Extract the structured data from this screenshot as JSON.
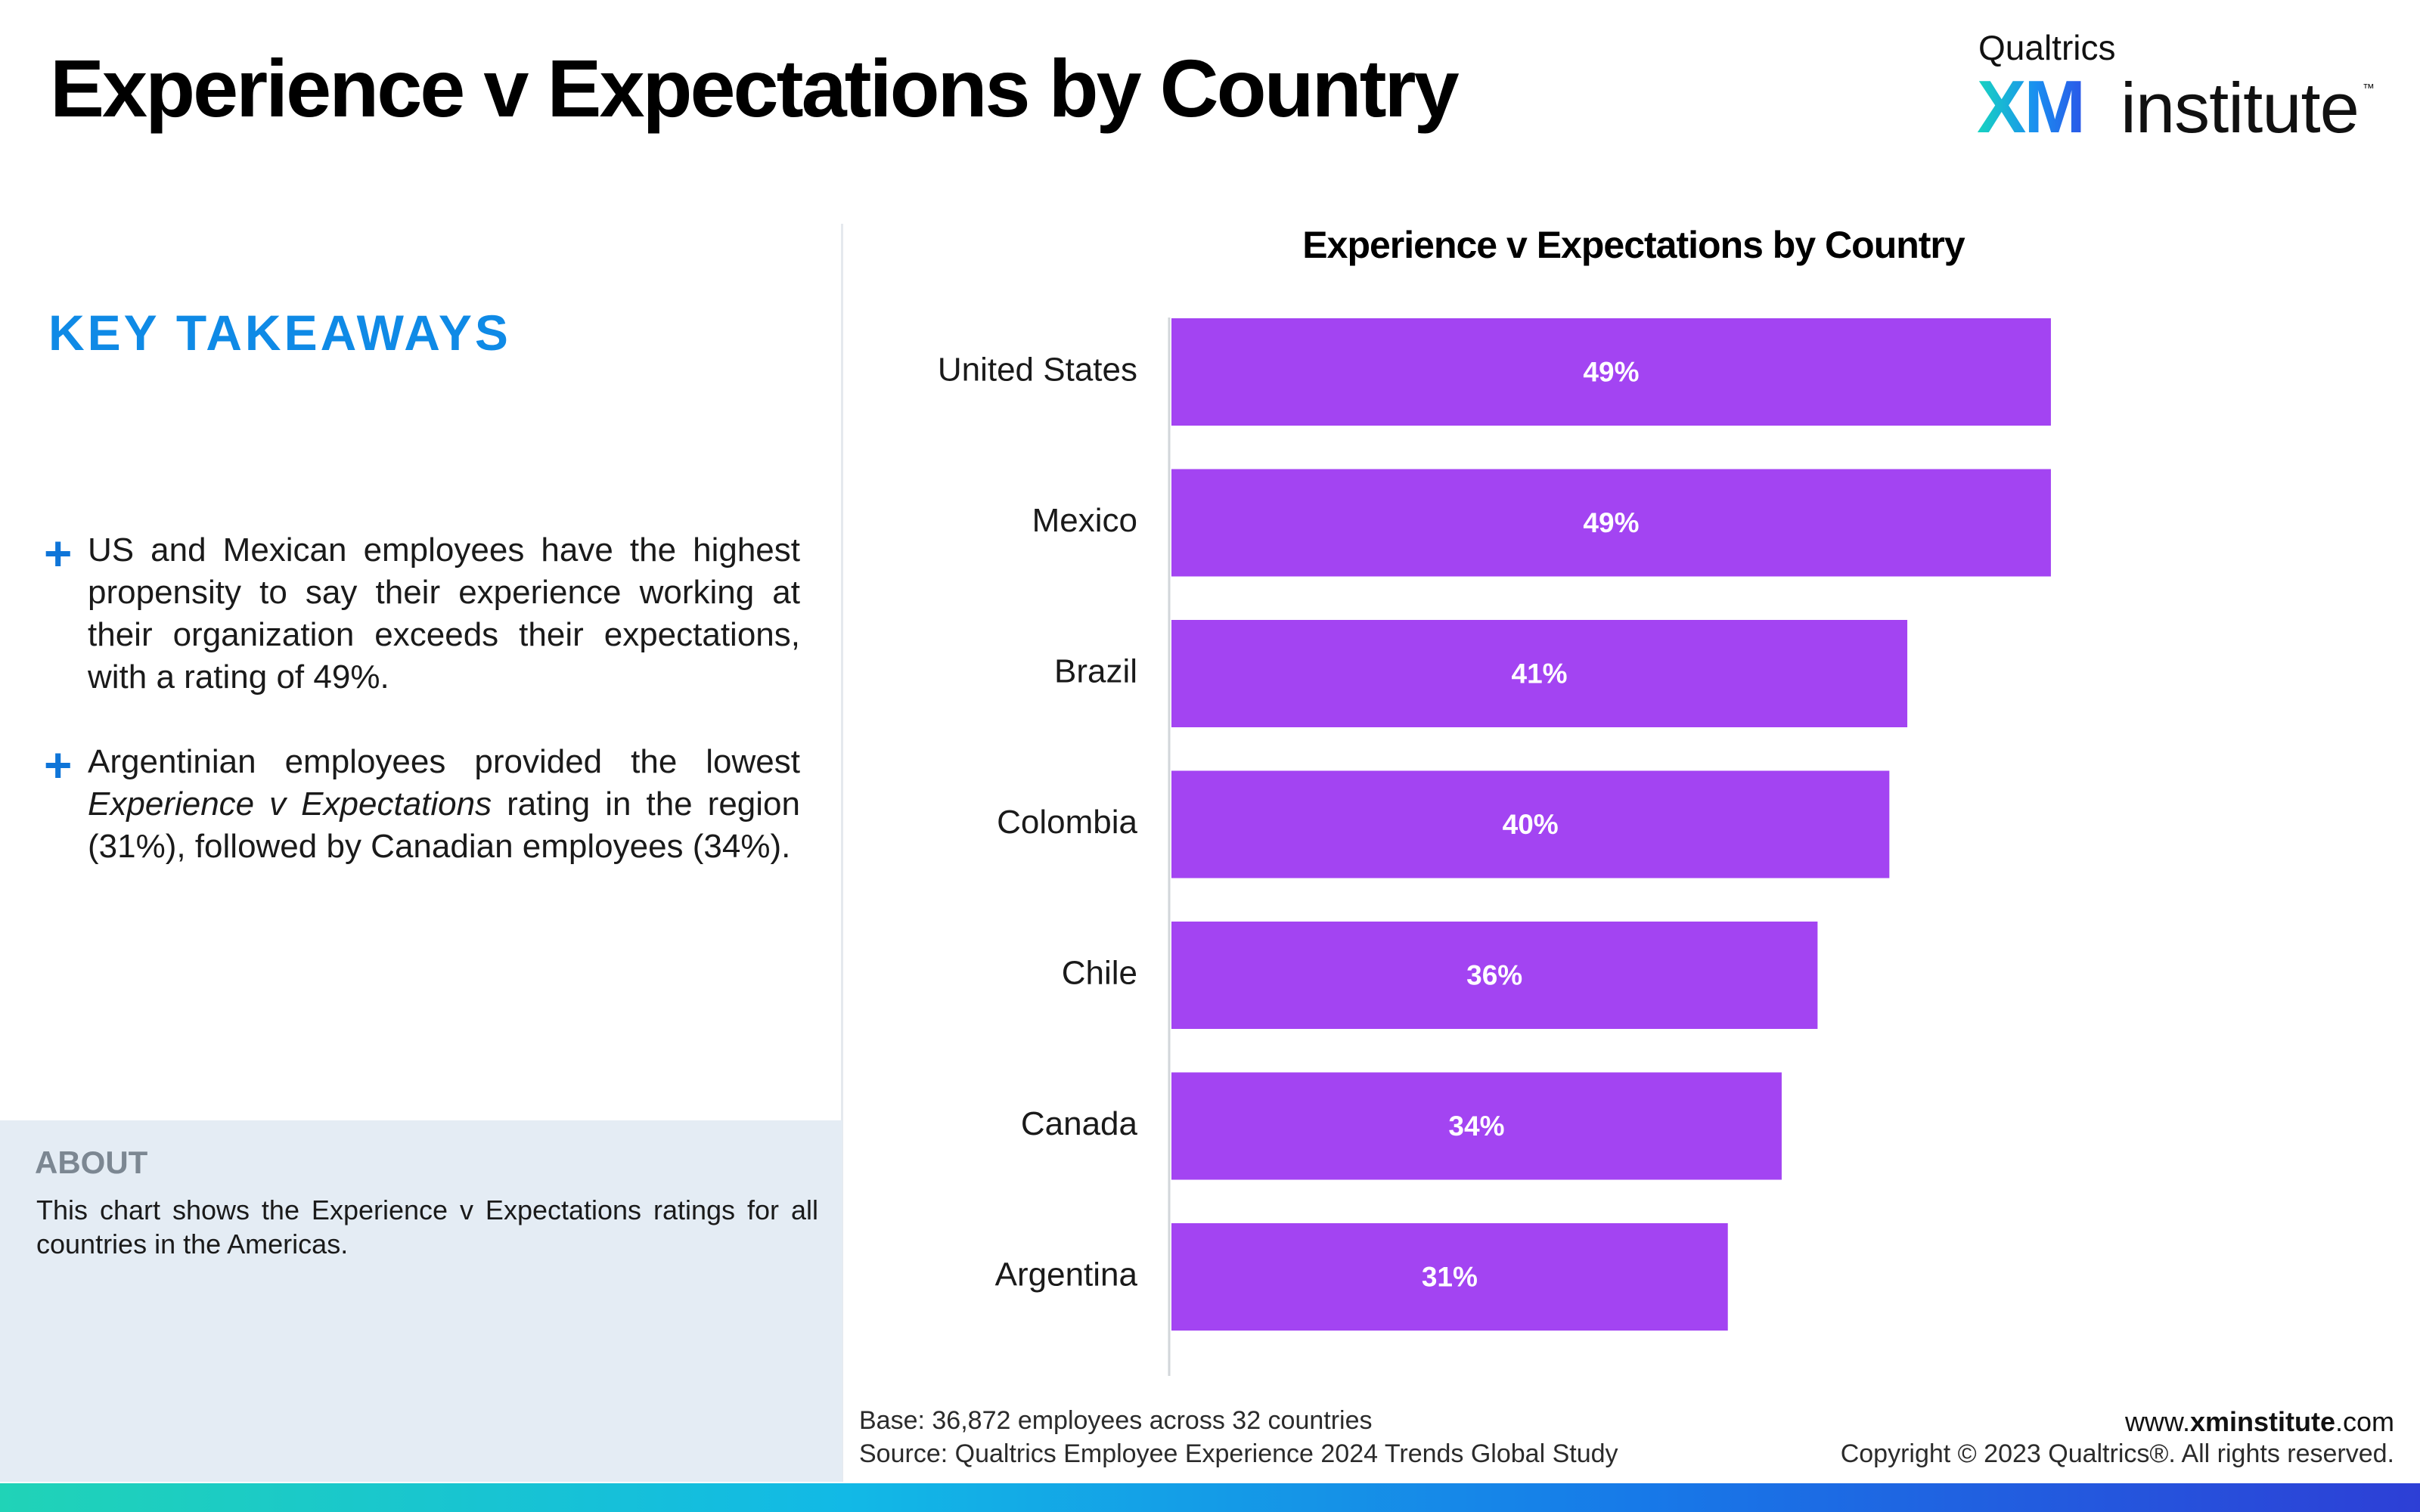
{
  "page": {
    "title": "Experience v Expectations by Country"
  },
  "logo": {
    "brand": "Qualtrics",
    "xm": "XM",
    "institute": "institute",
    "tm": "™"
  },
  "takeaways": {
    "heading": "KEY TAKEAWAYS",
    "items": [
      {
        "icon": "plus-icon",
        "text": "US and Mexican employees have the highest propensity to say their experience working at their organization exceeds their expectations, with a rating of 49%."
      },
      {
        "icon": "plus-icon",
        "before": "Argentinian employees provided the lowest ",
        "italic": "Experience v Expectations",
        "after": " rating in the region (31%), followed by Canadian employees (34%)."
      }
    ]
  },
  "about": {
    "heading": "ABOUT",
    "text": "This chart shows the Experience v Expectations ratings for all countries in the Americas."
  },
  "chart_data": {
    "type": "bar",
    "orientation": "horizontal",
    "title": "Experience v Expectations by Country",
    "xlabel": "",
    "ylabel": "",
    "categories": [
      "United States",
      "Mexico",
      "Brazil",
      "Colombia",
      "Chile",
      "Canada",
      "Argentina"
    ],
    "values": [
      49,
      49,
      41,
      40,
      36,
      34,
      31
    ],
    "value_labels": [
      "49%",
      "49%",
      "41%",
      "40%",
      "36%",
      "34%",
      "31%"
    ],
    "unit": "%",
    "xlim": [
      0,
      60
    ],
    "grid": false,
    "legend": "none",
    "bar_color": "#a344f2",
    "label_color": "#ffffff"
  },
  "footer": {
    "base": "Base: 36,872 employees across 32 countries",
    "source": "Source: Qualtrics Employee Experience 2024 Trends Global Study",
    "website_prefix": "www.",
    "website_bold": "xminstitute",
    "website_suffix": ".com",
    "copyright": "Copyright © 2023 Qualtrics®. All rights reserved."
  },
  "colors": {
    "accent_blue": "#0f8ae6",
    "bar_purple": "#a344f2",
    "about_bg": "#e4ecf4"
  }
}
